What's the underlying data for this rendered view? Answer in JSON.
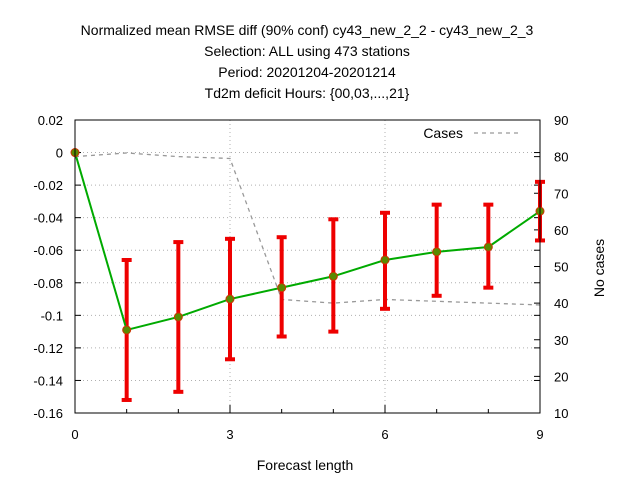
{
  "chart_data": {
    "type": "line",
    "title_lines": [
      "Normalized mean RMSE diff (90% conf) cy43_new_2_2 - cy43_new_2_3",
      "Selection: ALL using   473 stations",
      "Period: 20201204-20201214",
      "Td2m deficit  Hours: {00,03,...,21}"
    ],
    "xlabel": "Forecast length",
    "ylabel": "",
    "y2label": "No cases",
    "xlim": [
      0,
      9
    ],
    "ylim": [
      -0.16,
      0.02
    ],
    "y2lim": [
      10,
      90
    ],
    "xticks": [
      "0",
      "3",
      "6",
      "9"
    ],
    "yticks": [
      "0.02",
      "0",
      "-0.02",
      "-0.04",
      "-0.06",
      "-0.08",
      "-0.1",
      "-0.12",
      "-0.14",
      "-0.16"
    ],
    "y2ticks": [
      "90",
      "80",
      "70",
      "60",
      "50",
      "40",
      "30",
      "20",
      "10"
    ],
    "grid": true,
    "legend": {
      "label": "Cases",
      "position": "top-right"
    },
    "series": [
      {
        "values_x": [
          0,
          1,
          2,
          3,
          4,
          5,
          6,
          7,
          8,
          9
        ],
        "values_y": [
          0,
          -0.109,
          -0.101,
          -0.09,
          -0.083,
          -0.076,
          -0.066,
          -0.061,
          -0.058,
          -0.036
        ],
        "err_low": [
          0,
          -0.152,
          -0.147,
          -0.127,
          -0.113,
          -0.11,
          -0.096,
          -0.088,
          -0.083,
          -0.054
        ],
        "err_high": [
          0,
          -0.066,
          -0.055,
          -0.053,
          -0.052,
          -0.041,
          -0.037,
          -0.032,
          -0.032,
          -0.018
        ],
        "color": "#00aa00",
        "error_color": "#ee0000",
        "axis": "left"
      },
      {
        "name": "Cases",
        "values_x": [
          0,
          1,
          2,
          3,
          4,
          5,
          6,
          7,
          8,
          9
        ],
        "values_y": [
          80,
          81,
          80,
          79.5,
          41,
          40,
          41,
          40.5,
          40,
          39.5
        ],
        "color": "#999999",
        "style": "dashed",
        "axis": "right"
      }
    ]
  }
}
